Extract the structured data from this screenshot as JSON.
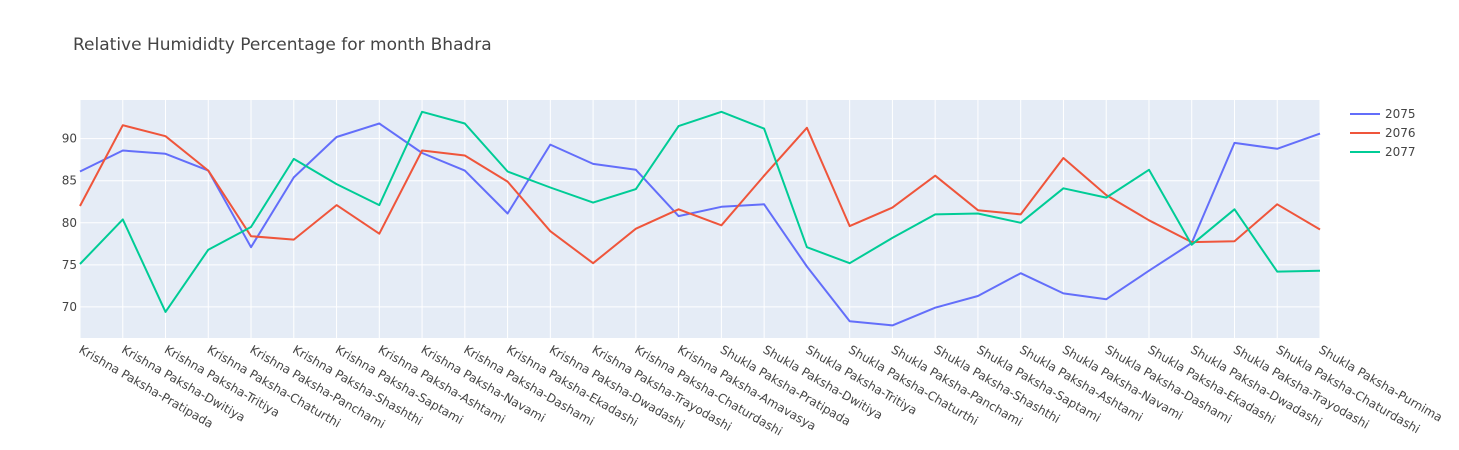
{
  "chart_data": {
    "type": "line",
    "title": "Relative Humididty Percentage for month Bhadra",
    "xlabel": "",
    "ylabel": "",
    "categories": [
      "Krishna Paksha-Pratipada",
      "Krishna Paksha-Dwitiya",
      "Krishna Paksha-Tritiya",
      "Krishna Paksha-Chaturthi",
      "Krishna Paksha-Panchami",
      "Krishna Paksha-Shashthi",
      "Krishna Paksha-Saptami",
      "Krishna Paksha-Ashtami",
      "Krishna Paksha-Navami",
      "Krishna Paksha-Dashami",
      "Krishna Paksha-Ekadashi",
      "Krishna Paksha-Dwadashi",
      "Krishna Paksha-Trayodashi",
      "Krishna Paksha-Chaturdashi",
      "Krishna Paksha-Amavasya",
      "Shukla Paksha-Pratipada",
      "Shukla Paksha-Dwitiya",
      "Shukla Paksha-Tritiya",
      "Shukla Paksha-Chaturthi",
      "Shukla Paksha-Panchami",
      "Shukla Paksha-Shashthi",
      "Shukla Paksha-Saptami",
      "Shukla Paksha-Ashtami",
      "Shukla Paksha-Navami",
      "Shukla Paksha-Dashami",
      "Shukla Paksha-Ekadashi",
      "Shukla Paksha-Dwadashi",
      "Shukla Paksha-Trayodashi",
      "Shukla Paksha-Chaturdashi",
      "Shukla Paksha-Purnima"
    ],
    "series": [
      {
        "name": "2075",
        "color": "#636efa",
        "values": [
          86.1,
          88.6,
          88.2,
          86.2,
          77.1,
          85.4,
          90.2,
          91.8,
          88.3,
          86.2,
          81.1,
          89.3,
          87.0,
          86.3,
          80.8,
          81.9,
          82.2,
          74.8,
          68.3,
          67.8,
          69.9,
          71.3,
          74.0,
          71.6,
          70.9,
          74.3,
          77.6,
          89.5,
          88.8,
          90.6
        ]
      },
      {
        "name": "2076",
        "color": "#ef553b",
        "values": [
          82.0,
          91.6,
          90.3,
          86.2,
          78.4,
          78.0,
          82.1,
          78.7,
          88.6,
          88.0,
          84.9,
          79.0,
          75.2,
          79.3,
          81.6,
          79.7,
          85.6,
          91.3,
          79.6,
          81.8,
          85.6,
          81.5,
          81.0,
          87.7,
          83.3,
          80.3,
          77.7,
          77.8,
          82.2,
          79.2
        ]
      },
      {
        "name": "2077",
        "color": "#00cc96",
        "values": [
          75.1,
          80.4,
          69.4,
          76.8,
          79.5,
          87.6,
          84.6,
          82.1,
          93.2,
          91.8,
          86.1,
          84.2,
          82.4,
          84.0,
          91.5,
          93.2,
          91.2,
          77.1,
          75.2,
          78.2,
          81.0,
          81.1,
          80.0,
          84.1,
          83.0,
          86.3,
          77.4,
          81.6,
          74.2,
          74.3
        ]
      }
    ],
    "ylim": [
      66.3,
      94.6
    ],
    "yticks": [
      70,
      75,
      80,
      85,
      90
    ],
    "grid": true,
    "legend_position": "top-right",
    "plot_background": "#e5ecf6"
  }
}
